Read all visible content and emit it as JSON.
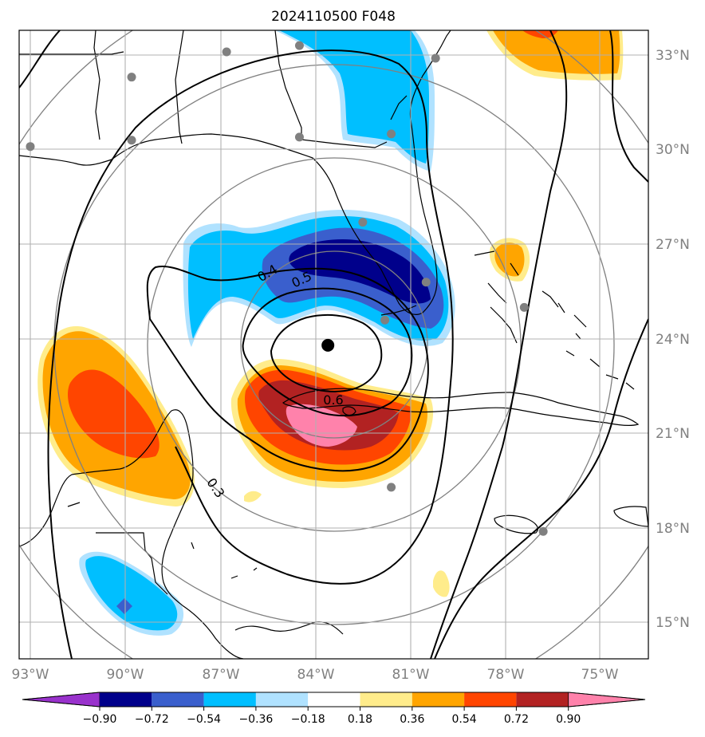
{
  "title": "2024110500 F048",
  "longitude_labels": [
    "93°W",
    "90°W",
    "87°W",
    "84°W",
    "81°W",
    "78°W",
    "75°W"
  ],
  "latitude_labels": [
    "33°N",
    "30°N",
    "27°N",
    "24°N",
    "21°N",
    "18°N",
    "15°N"
  ],
  "colorbar": {
    "ticks": [
      "−0.90",
      "−0.72",
      "−0.54",
      "−0.36",
      "−0.18",
      "0.18",
      "0.36",
      "0.54",
      "0.72",
      "0.90"
    ],
    "colors": [
      "#9932cc",
      "#00008b",
      "#3a5fcd",
      "#00bfff",
      "#b0e2ff",
      "#ffffff",
      "#ffec8b",
      "#ffa500",
      "#ff4500",
      "#b22222",
      "#ff82ab"
    ]
  },
  "contour_labels": [
    "0.4",
    "0.5",
    "0.6",
    "0.3"
  ],
  "storm_center": {
    "lon": -83.6,
    "lat": 23.8
  },
  "stations": [
    {
      "lon": -93.0,
      "lat": 30.1
    },
    {
      "lon": -89.8,
      "lat": 32.3
    },
    {
      "lon": -89.8,
      "lat": 30.3
    },
    {
      "lon": -86.8,
      "lat": 33.1
    },
    {
      "lon": -84.5,
      "lat": 33.3
    },
    {
      "lon": -84.5,
      "lat": 30.4
    },
    {
      "lon": -81.6,
      "lat": 30.5
    },
    {
      "lon": -80.2,
      "lat": 32.9
    },
    {
      "lon": -82.5,
      "lat": 27.7
    },
    {
      "lon": -80.5,
      "lat": 25.8
    },
    {
      "lon": -81.8,
      "lat": 24.6
    },
    {
      "lon": -77.4,
      "lat": 25.0
    },
    {
      "lon": -81.6,
      "lat": 19.3
    },
    {
      "lon": -76.8,
      "lat": 17.9
    }
  ]
}
